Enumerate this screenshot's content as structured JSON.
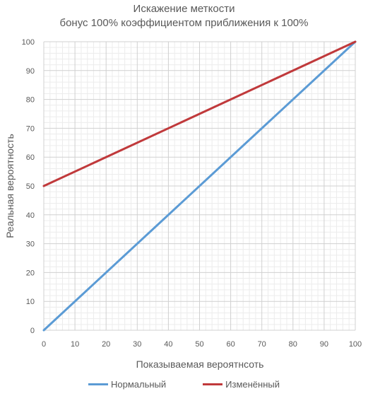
{
  "chart_data": {
    "type": "line",
    "title": "Искажение меткости",
    "subtitle": "бонус 100% коэффициентом приближения к 100%",
    "xlabel": "Показываемая вероятнсоть",
    "ylabel": "Реальная вероятность",
    "xlim": [
      0,
      100
    ],
    "ylim": [
      0,
      100
    ],
    "x_ticks": [
      0,
      10,
      20,
      30,
      40,
      50,
      60,
      70,
      80,
      90,
      100
    ],
    "y_ticks": [
      0,
      10,
      20,
      30,
      40,
      50,
      60,
      70,
      80,
      90,
      100
    ],
    "grid": true,
    "legend_position": "bottom",
    "series": [
      {
        "name": "Нормальный",
        "color": "#5b9bd5",
        "x": [
          0,
          100
        ],
        "y": [
          0,
          100
        ]
      },
      {
        "name": "Изменённый",
        "color": "#c0393b",
        "x": [
          0,
          100
        ],
        "y": [
          50,
          100
        ]
      }
    ]
  }
}
